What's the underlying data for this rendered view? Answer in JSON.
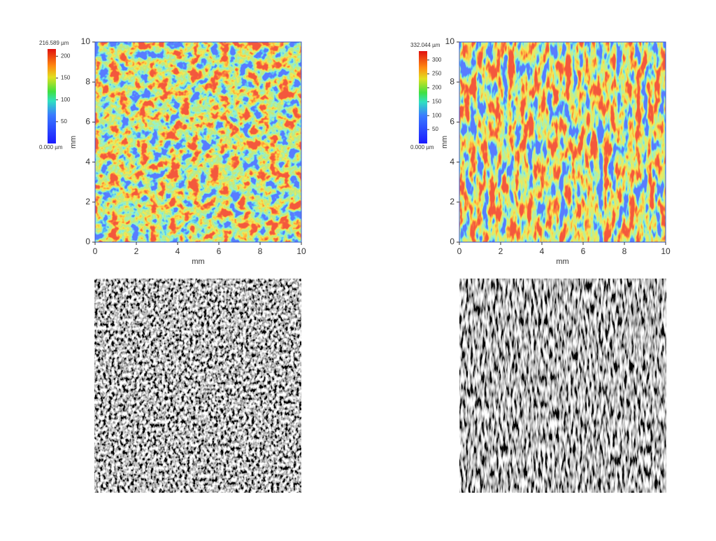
{
  "panels": [
    {
      "colorbar": {
        "max_label": "216.589 µm",
        "min_label": "0.000 µm",
        "max": 216.589,
        "ticks": [
          50,
          100,
          150,
          200
        ]
      },
      "x_label": "mm",
      "y_label": "mm",
      "x_ticks": [
        0,
        2,
        4,
        6,
        8,
        10
      ],
      "y_ticks": [
        0,
        2,
        4,
        6,
        8,
        10
      ]
    },
    {
      "colorbar": {
        "max_label": "332.044 µm",
        "min_label": "0.000 µm",
        "max": 332.044,
        "ticks": [
          50,
          100,
          150,
          200,
          250,
          300
        ]
      },
      "x_label": "mm",
      "y_label": "mm",
      "x_ticks": [
        0,
        2,
        4,
        6,
        8,
        10
      ],
      "y_ticks": [
        0,
        2,
        4,
        6,
        8,
        10
      ]
    }
  ]
}
